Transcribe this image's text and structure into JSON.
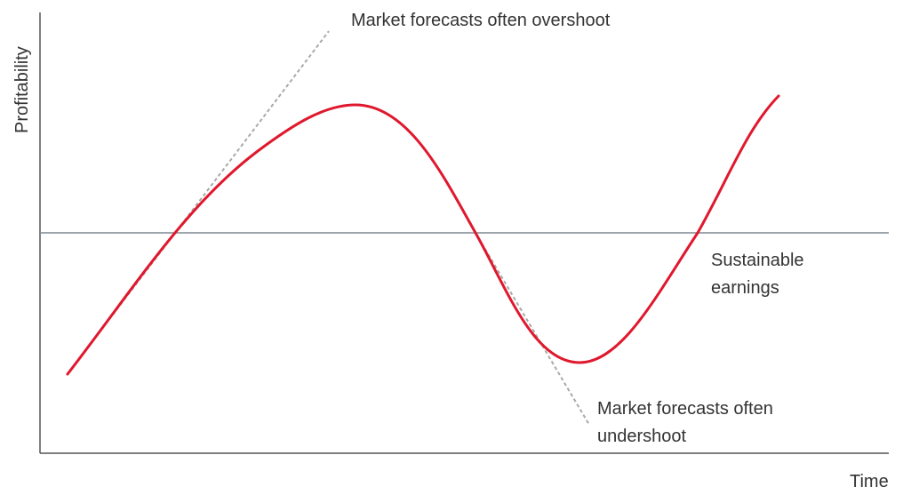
{
  "labels": {
    "y_axis": "Profitability",
    "x_axis": "Time",
    "overshoot": "Market forecasts often overshoot",
    "sustainable_line1": "Sustainable",
    "sustainable_line2": "earnings",
    "undershoot_line1": "Market forecasts often",
    "undershoot_line2": "undershoot"
  },
  "colors": {
    "earnings_curve": "#e0182d",
    "forecast_lines": "#a9a9a9",
    "sustainable_line": "#7f8890",
    "axes": "#555555"
  }
}
